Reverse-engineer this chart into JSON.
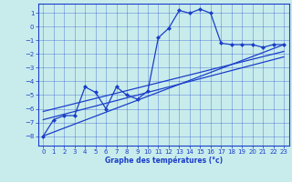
{
  "xlabel": "Graphe des températures (°c)",
  "background_color": "#c8ecec",
  "line_color": "#1a3ec8",
  "xlim": [
    -0.5,
    23.5
  ],
  "ylim": [
    -8.7,
    1.7
  ],
  "xticks": [
    0,
    1,
    2,
    3,
    4,
    5,
    6,
    7,
    8,
    9,
    10,
    11,
    12,
    13,
    14,
    15,
    16,
    17,
    18,
    19,
    20,
    21,
    22,
    23
  ],
  "yticks": [
    1,
    0,
    -1,
    -2,
    -3,
    -4,
    -5,
    -6,
    -7,
    -8
  ],
  "series": [
    {
      "x": [
        0,
        1,
        2,
        3,
        4,
        5,
        6,
        7,
        8,
        9,
        10,
        11,
        12,
        13,
        14,
        15,
        16,
        17,
        18,
        19,
        20,
        21,
        22,
        23
      ],
      "y": [
        -8.0,
        -6.8,
        -6.5,
        -6.5,
        -4.4,
        -4.8,
        -6.0,
        -4.4,
        -5.0,
        -5.3,
        -4.7,
        -0.8,
        -0.1,
        1.2,
        1.0,
        1.3,
        1.0,
        -1.2,
        -1.3,
        -1.3,
        -1.3,
        -1.5,
        -1.3,
        -1.3
      ],
      "marker": "D",
      "markersize": 2.0,
      "linewidth": 0.9
    },
    {
      "x": [
        0,
        23
      ],
      "y": [
        -8.0,
        -1.3
      ],
      "marker": null,
      "linewidth": 0.9
    },
    {
      "x": [
        0,
        23
      ],
      "y": [
        -6.2,
        -1.8
      ],
      "marker": null,
      "linewidth": 0.9
    },
    {
      "x": [
        0,
        23
      ],
      "y": [
        -6.8,
        -2.2
      ],
      "marker": null,
      "linewidth": 0.9
    }
  ]
}
